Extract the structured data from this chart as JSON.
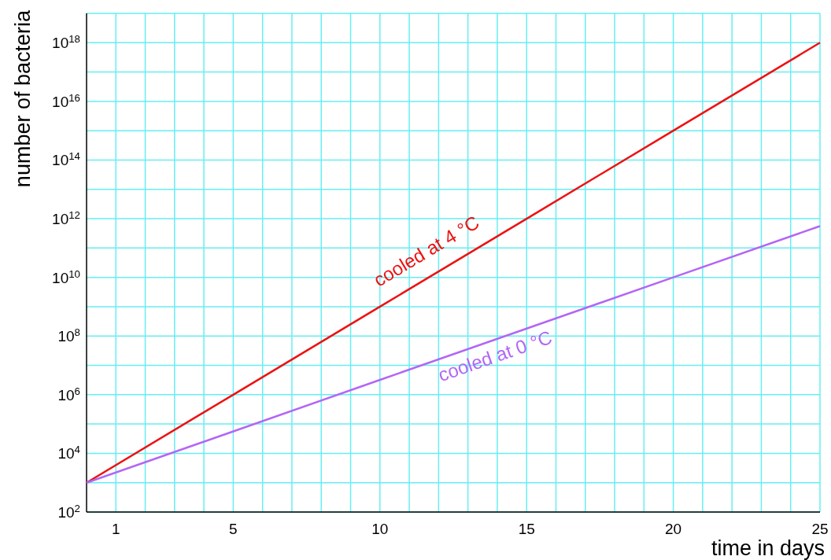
{
  "chart_data": {
    "type": "line",
    "xlabel": "time in days",
    "ylabel": "number of bacteria",
    "log": "y",
    "grid": true,
    "marker": "none",
    "line_style": "solid",
    "x": [
      0,
      5,
      10,
      15,
      20,
      25
    ],
    "xlim": [
      0,
      25
    ],
    "xticks": [
      {
        "value": 1,
        "label": "1"
      },
      {
        "value": 2,
        "label": null
      },
      {
        "value": 3,
        "label": null
      },
      {
        "value": 4,
        "label": null
      },
      5,
      {
        "value": 6,
        "label": null
      },
      {
        "value": 7,
        "label": null
      },
      {
        "value": 8,
        "label": null
      },
      {
        "value": 9,
        "label": null
      },
      10,
      {
        "value": 11,
        "label": null
      },
      {
        "value": 12,
        "label": null
      },
      {
        "value": 13,
        "label": null
      },
      {
        "value": 14,
        "label": null
      },
      15,
      {
        "value": 16,
        "label": null
      },
      {
        "value": 17,
        "label": null
      },
      {
        "value": 18,
        "label": null
      },
      {
        "value": 19,
        "label": null
      },
      20,
      {
        "value": 21,
        "label": null
      },
      {
        "value": 22,
        "label": null
      },
      {
        "value": 23,
        "label": null
      },
      {
        "value": 24,
        "label": null
      },
      25
    ],
    "ylim": [
      100.0,
      1e+19
    ],
    "yticks": [
      {
        "value": 100.0,
        "label": "10$^{2}$"
      },
      {
        "value": 1000.0,
        "label": null
      },
      {
        "value": 10000.0,
        "label": "10$^{4}$"
      },
      {
        "value": 100000.0,
        "label": null
      },
      {
        "value": 1000000.0,
        "label": "10$^{6}$"
      },
      {
        "value": 10000000.0,
        "label": null
      },
      {
        "value": 100000000.0,
        "label": "10$^{8}$"
      },
      {
        "value": 1000000000.0,
        "label": null
      },
      {
        "value": 10000000000.0,
        "label": "10$^{10}$"
      },
      {
        "value": 100000000000.0,
        "label": null
      },
      {
        "value": 1000000000000.0,
        "label": "10$^{12}$"
      },
      {
        "value": 10000000000000.0,
        "label": null
      },
      {
        "value": 100000000000000.0,
        "label": "10$^{14}$"
      },
      {
        "value": 1000000000000000.0,
        "label": null
      },
      {
        "value": 1e+16,
        "label": "10$^{16}$"
      },
      {
        "value": 1e+17,
        "label": null
      },
      {
        "value": 1e+18,
        "label": "10$^{18}$"
      },
      {
        "value": 1e+19,
        "label": null
      }
    ],
    "series": [
      {
        "name": "cooled at 4 °C",
        "color": "#ee1111",
        "values": [
          1000.0,
          1000000.0,
          1000000000.0,
          1000000000000.0,
          1000000000000000.0,
          1e+18
        ]
      },
      {
        "name": "cooled at 0 °C",
        "color": "#b366f5",
        "values": [
          1000.0,
          56000.0,
          3200000.0,
          180000000.0,
          10000000000.0,
          560000000000.0
        ]
      }
    ]
  }
}
